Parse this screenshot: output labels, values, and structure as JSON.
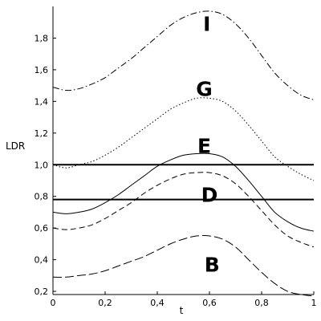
{
  "chart_data": {
    "type": "line",
    "title": "",
    "xlabel": "t",
    "ylabel": "LDR",
    "xlim": [
      0,
      1
    ],
    "ylim": [
      0.18,
      2.0
    ],
    "xticks": [
      0,
      0.2,
      0.4,
      0.6,
      0.8,
      1
    ],
    "xtick_labels": [
      "0",
      "0,2",
      "0,4",
      "0,6",
      "0,8",
      "1"
    ],
    "yticks": [
      0.2,
      0.4,
      0.6,
      0.8,
      1.0,
      1.2,
      1.4,
      1.6,
      1.8
    ],
    "ytick_labels": [
      "0,2",
      "0,4",
      "0,6",
      "0,8",
      "1,0",
      "1,2",
      "1,4",
      "1,6",
      "1,8"
    ],
    "grid": false,
    "hlines": [
      1.0,
      0.78
    ],
    "series": [
      {
        "name": "I",
        "dash": "dashdot",
        "label_at": [
          0.59,
          1.89
        ],
        "x": [
          0,
          0.05,
          0.1,
          0.15,
          0.2,
          0.25,
          0.3,
          0.35,
          0.4,
          0.45,
          0.5,
          0.55,
          0.6,
          0.65,
          0.7,
          0.75,
          0.8,
          0.85,
          0.9,
          0.95,
          1
        ],
        "y": [
          1.49,
          1.47,
          1.48,
          1.51,
          1.55,
          1.61,
          1.67,
          1.74,
          1.81,
          1.88,
          1.93,
          1.96,
          1.97,
          1.95,
          1.89,
          1.8,
          1.69,
          1.58,
          1.5,
          1.44,
          1.41
        ]
      },
      {
        "name": "G",
        "dash": "dotted",
        "label_at": [
          0.58,
          1.48
        ],
        "x": [
          0,
          0.05,
          0.1,
          0.15,
          0.2,
          0.25,
          0.3,
          0.35,
          0.4,
          0.45,
          0.5,
          0.55,
          0.6,
          0.65,
          0.7,
          0.75,
          0.8,
          0.85,
          0.9,
          0.95,
          1
        ],
        "y": [
          1.0,
          0.98,
          1.0,
          1.02,
          1.06,
          1.11,
          1.17,
          1.23,
          1.29,
          1.35,
          1.39,
          1.42,
          1.42,
          1.4,
          1.34,
          1.25,
          1.15,
          1.05,
          0.99,
          0.94,
          0.9
        ]
      },
      {
        "name": "E",
        "dash": "solid",
        "label_at": [
          0.58,
          1.12
        ],
        "x": [
          0,
          0.05,
          0.1,
          0.15,
          0.2,
          0.25,
          0.3,
          0.35,
          0.4,
          0.45,
          0.5,
          0.55,
          0.6,
          0.65,
          0.7,
          0.75,
          0.8,
          0.85,
          0.9,
          0.95,
          1
        ],
        "y": [
          0.7,
          0.69,
          0.7,
          0.72,
          0.76,
          0.81,
          0.87,
          0.93,
          0.99,
          1.03,
          1.06,
          1.07,
          1.07,
          1.05,
          0.99,
          0.9,
          0.8,
          0.7,
          0.64,
          0.6,
          0.58
        ]
      },
      {
        "name": "D",
        "dash": "dashed",
        "label_at": [
          0.6,
          0.81
        ],
        "x": [
          0,
          0.05,
          0.1,
          0.15,
          0.2,
          0.25,
          0.3,
          0.35,
          0.4,
          0.45,
          0.5,
          0.55,
          0.6,
          0.65,
          0.7,
          0.75,
          0.8,
          0.85,
          0.9,
          0.95,
          1
        ],
        "y": [
          0.6,
          0.59,
          0.6,
          0.62,
          0.66,
          0.71,
          0.76,
          0.82,
          0.87,
          0.91,
          0.94,
          0.95,
          0.95,
          0.93,
          0.88,
          0.8,
          0.71,
          0.62,
          0.55,
          0.51,
          0.48
        ]
      },
      {
        "name": "B",
        "dash": "longdash",
        "label_at": [
          0.61,
          0.37
        ],
        "x": [
          0,
          0.05,
          0.1,
          0.15,
          0.2,
          0.25,
          0.3,
          0.35,
          0.4,
          0.45,
          0.5,
          0.55,
          0.6,
          0.65,
          0.7,
          0.75,
          0.8,
          0.85,
          0.9,
          0.95,
          1
        ],
        "y": [
          0.29,
          0.29,
          0.3,
          0.31,
          0.33,
          0.36,
          0.39,
          0.42,
          0.46,
          0.5,
          0.53,
          0.55,
          0.55,
          0.53,
          0.48,
          0.4,
          0.32,
          0.25,
          0.2,
          0.18,
          0.17
        ]
      }
    ]
  }
}
